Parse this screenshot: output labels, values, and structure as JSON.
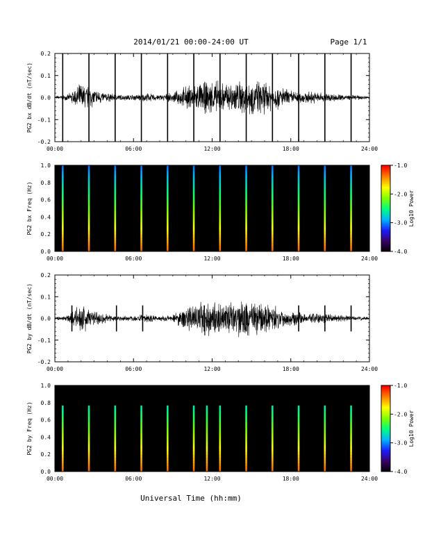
{
  "header": {
    "title": "2014/01/21   00:00-24:00 UT",
    "page": "Page 1/1"
  },
  "xlabel": "Universal Time (hh:mm)",
  "xticks": [
    "00:00",
    "06:00",
    "12:00",
    "18:00",
    "24:00"
  ],
  "xlim_hours": [
    0,
    24
  ],
  "colorbar": {
    "label": "Log10 Power",
    "ticks": [
      "-1.0",
      "-2.0",
      "-3.0",
      "-4.0"
    ],
    "range": [
      -4.0,
      -1.0
    ],
    "colors": [
      "#000000",
      "#3a0064",
      "#1a1aff",
      "#00b4ff",
      "#00ff7f",
      "#7fff00",
      "#ffff00",
      "#ff8000",
      "#ff0000"
    ]
  },
  "chart_data": [
    {
      "type": "line",
      "ylabel": "PG2 bx dB/dt (nT/sec)",
      "ylim": [
        -0.2,
        0.2
      ],
      "yticks": [
        "0.2",
        "0.1",
        "0.0",
        "-0.1",
        "-0.2"
      ],
      "x_hours": [
        0,
        1,
        2,
        3,
        4,
        5,
        6,
        7,
        8,
        9,
        10,
        11,
        12,
        13,
        14,
        15,
        16,
        17,
        18,
        19,
        20,
        21,
        22,
        23,
        24
      ],
      "envelope_amplitude": [
        0.005,
        0.01,
        0.05,
        0.03,
        0.015,
        0.01,
        0.01,
        0.015,
        0.01,
        0.015,
        0.04,
        0.05,
        0.06,
        0.05,
        0.06,
        0.06,
        0.055,
        0.04,
        0.025,
        0.02,
        0.02,
        0.015,
        0.01,
        0.008,
        0.005
      ],
      "spike_times_hours": [
        0.6,
        2.6,
        4.6,
        6.6,
        8.6,
        10.6,
        12.6,
        14.6,
        16.6,
        18.6,
        20.6,
        22.6
      ],
      "spike_min": -0.21,
      "spike_max": 0.21
    },
    {
      "type": "heatmap",
      "ylabel": "PG2 bx Freq (Hz)",
      "ylim": [
        0.0,
        1.0
      ],
      "yticks": [
        "1.0",
        "0.8",
        "0.6",
        "0.4",
        "0.2",
        "0.0"
      ],
      "x_hours": [
        0,
        1,
        2,
        3,
        4,
        5,
        6,
        7,
        8,
        9,
        10,
        11,
        12,
        13,
        14,
        15,
        16,
        17,
        18,
        19,
        20,
        21,
        22,
        23,
        24
      ],
      "activity_level": [
        0.1,
        0.2,
        0.55,
        0.35,
        0.2,
        0.15,
        0.15,
        0.15,
        0.15,
        0.2,
        0.45,
        0.6,
        0.65,
        0.6,
        0.65,
        0.65,
        0.6,
        0.5,
        0.35,
        0.3,
        0.25,
        0.25,
        0.2,
        0.15,
        0.1
      ],
      "spike_times_hours": [
        0.6,
        2.6,
        4.6,
        6.6,
        8.6,
        10.6,
        12.6,
        14.6,
        16.6,
        18.6,
        20.6,
        22.6
      ]
    },
    {
      "type": "line",
      "ylabel": "PG2 by dB/dt (nT/sec)",
      "ylim": [
        -0.2,
        0.2
      ],
      "yticks": [
        "0.2",
        "0.1",
        "0.0",
        "-0.1",
        "-0.2"
      ],
      "x_hours": [
        0,
        1,
        2,
        3,
        4,
        5,
        6,
        7,
        8,
        9,
        10,
        11,
        12,
        13,
        14,
        15,
        16,
        17,
        18,
        19,
        20,
        21,
        22,
        23,
        24
      ],
      "envelope_amplitude": [
        0.005,
        0.01,
        0.05,
        0.03,
        0.015,
        0.01,
        0.01,
        0.015,
        0.01,
        0.015,
        0.04,
        0.06,
        0.06,
        0.05,
        0.06,
        0.06,
        0.055,
        0.04,
        0.025,
        0.02,
        0.02,
        0.015,
        0.01,
        0.008,
        0.005
      ],
      "spike_times_hours": [
        1.3,
        4.7,
        6.7,
        11.4,
        14.6,
        18.6,
        20.6,
        22.6
      ],
      "spike_min": -0.06,
      "spike_max": 0.06
    },
    {
      "type": "heatmap",
      "ylabel": "PG2 by Freq (Hz)",
      "ylim": [
        0.0,
        1.0
      ],
      "yticks": [
        "1.0",
        "0.8",
        "0.6",
        "0.4",
        "0.2",
        "0.0"
      ],
      "x_hours": [
        0,
        1,
        2,
        3,
        4,
        5,
        6,
        7,
        8,
        9,
        10,
        11,
        12,
        13,
        14,
        15,
        16,
        17,
        18,
        19,
        20,
        21,
        22,
        23,
        24
      ],
      "activity_level": [
        0.1,
        0.2,
        0.55,
        0.35,
        0.2,
        0.15,
        0.15,
        0.15,
        0.15,
        0.2,
        0.45,
        0.65,
        0.65,
        0.6,
        0.65,
        0.65,
        0.6,
        0.5,
        0.35,
        0.3,
        0.25,
        0.25,
        0.2,
        0.15,
        0.1
      ],
      "spike_times_hours": [
        0.6,
        2.6,
        4.6,
        6.6,
        8.6,
        10.6,
        11.6,
        12.6,
        14.6,
        16.6,
        18.6,
        20.6,
        22.6
      ]
    }
  ]
}
